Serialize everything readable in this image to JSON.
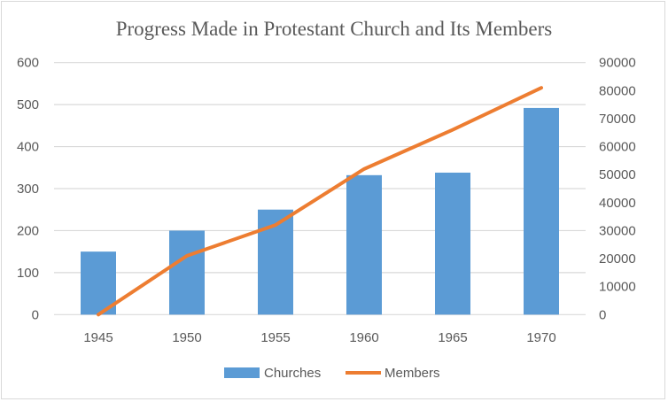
{
  "chart_data": {
    "type": "bar+line",
    "title": "Progress Made in Protestant Church and Its Members",
    "categories": [
      "1945",
      "1950",
      "1955",
      "1960",
      "1965",
      "1970"
    ],
    "series": [
      {
        "name": "Churches",
        "type": "bar",
        "axis": "left",
        "color": "#5b9bd5",
        "values": [
          150,
          200,
          250,
          332,
          338,
          492
        ]
      },
      {
        "name": "Members",
        "type": "line",
        "axis": "right",
        "color": "#ed7d31",
        "values": [
          0,
          21000,
          32000,
          52000,
          66000,
          81000
        ]
      }
    ],
    "y_left": {
      "range": [
        0,
        600
      ],
      "ticks": [
        "0",
        "100",
        "200",
        "300",
        "400",
        "500",
        "600"
      ]
    },
    "y_right": {
      "range": [
        0,
        90000
      ],
      "ticks": [
        "0",
        "10000",
        "20000",
        "30000",
        "40000",
        "50000",
        "60000",
        "70000",
        "80000",
        "90000"
      ]
    },
    "grid": true,
    "gridline_color": "#d9d9d9",
    "legend_position": "bottom"
  }
}
